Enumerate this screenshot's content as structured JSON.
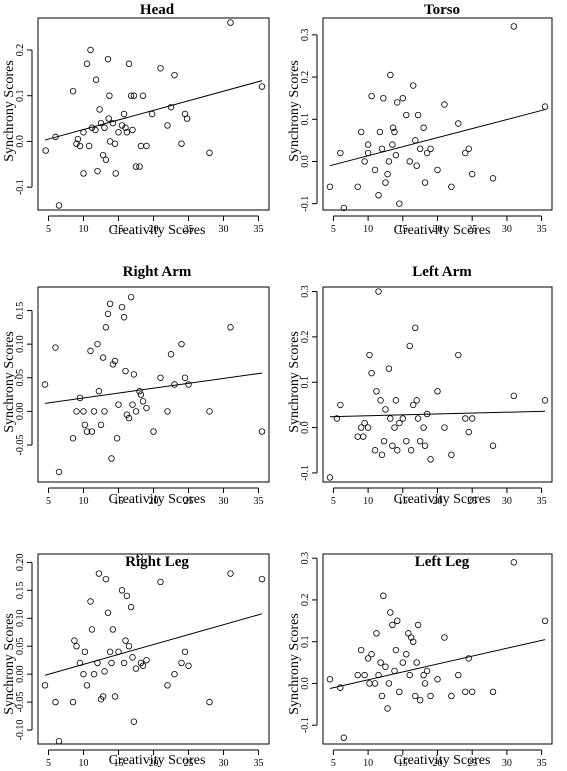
{
  "chart_data": [
    {
      "type": "scatter",
      "title": "Head",
      "xlabel": "Creativity Scores",
      "ylabel": "Synchrony Scores",
      "xlim": [
        3.5,
        36.5
      ],
      "ylim": [
        -0.15,
        0.27
      ],
      "xticks": [
        5,
        10,
        15,
        20,
        25,
        30,
        35
      ],
      "yticks": [
        -0.1,
        0.0,
        0.1,
        0.2
      ],
      "ytick_labels": [
        "-0.1",
        "0.0",
        "0.1",
        "0.2"
      ],
      "trend": [
        [
          4.5,
          0.003
        ],
        [
          35.5,
          0.133
        ]
      ],
      "points": [
        [
          4.6,
          -0.02
        ],
        [
          6,
          0.01
        ],
        [
          6.5,
          -0.14
        ],
        [
          8.5,
          0.11
        ],
        [
          9,
          -0.005
        ],
        [
          9.2,
          0.005
        ],
        [
          9.5,
          -0.01
        ],
        [
          10,
          0.02
        ],
        [
          10,
          -0.07
        ],
        [
          10.5,
          0.17
        ],
        [
          10.8,
          -0.01
        ],
        [
          11,
          0.2
        ],
        [
          11.2,
          0.03
        ],
        [
          11.7,
          0.025
        ],
        [
          11.8,
          0.135
        ],
        [
          12,
          -0.065
        ],
        [
          12.3,
          0.07
        ],
        [
          12.5,
          0.04
        ],
        [
          12.8,
          -0.03
        ],
        [
          13,
          0.03
        ],
        [
          13.2,
          -0.04
        ],
        [
          13.5,
          0.18
        ],
        [
          13.6,
          0.05
        ],
        [
          13.7,
          0.1
        ],
        [
          13.8,
          0.0
        ],
        [
          14.2,
          0.04
        ],
        [
          14.5,
          -0.005
        ],
        [
          14.6,
          -0.07
        ],
        [
          15,
          0.02
        ],
        [
          15.5,
          0.035
        ],
        [
          15.8,
          0.06
        ],
        [
          16,
          0.03
        ],
        [
          16.2,
          0.02
        ],
        [
          16.5,
          0.17
        ],
        [
          16.8,
          0.1
        ],
        [
          17,
          0.025
        ],
        [
          17.2,
          0.1
        ],
        [
          17.5,
          -0.055
        ],
        [
          18,
          -0.055
        ],
        [
          18.2,
          -0.01
        ],
        [
          18.5,
          0.1
        ],
        [
          19,
          -0.01
        ],
        [
          19.8,
          0.06
        ],
        [
          21,
          0.16
        ],
        [
          22,
          0.035
        ],
        [
          22.5,
          0.075
        ],
        [
          23,
          0.145
        ],
        [
          24,
          -0.005
        ],
        [
          24.5,
          0.06
        ],
        [
          24.8,
          0.05
        ],
        [
          28,
          -0.025
        ],
        [
          31,
          0.26
        ],
        [
          35.5,
          0.12
        ]
      ]
    },
    {
      "type": "scatter",
      "title": "Torso",
      "xlabel": "Creativity Scores",
      "ylabel": "Synchrony Scores",
      "xlim": [
        3.5,
        36.5
      ],
      "ylim": [
        -0.115,
        0.34
      ],
      "xticks": [
        5,
        10,
        15,
        20,
        25,
        30,
        35
      ],
      "yticks": [
        -0.1,
        0.0,
        0.1,
        0.2,
        0.3
      ],
      "ytick_labels": [
        "-0.1",
        "0.0",
        "0.1",
        "0.2",
        "0.3"
      ],
      "trend": [
        [
          4.5,
          -0.01
        ],
        [
          35.5,
          0.123
        ]
      ],
      "points": [
        [
          4.5,
          -0.06
        ],
        [
          6,
          0.02
        ],
        [
          6.5,
          -0.11
        ],
        [
          8.5,
          -0.06
        ],
        [
          9,
          0.07
        ],
        [
          9.5,
          0.0
        ],
        [
          10,
          0.04
        ],
        [
          10,
          0.02
        ],
        [
          10.5,
          0.155
        ],
        [
          11,
          -0.02
        ],
        [
          11.5,
          -0.08
        ],
        [
          11.7,
          0.07
        ],
        [
          12,
          0.03
        ],
        [
          12.2,
          0.15
        ],
        [
          12.5,
          -0.05
        ],
        [
          12.8,
          -0.03
        ],
        [
          13,
          0.0
        ],
        [
          13.2,
          0.205
        ],
        [
          13.5,
          0.04
        ],
        [
          13.6,
          0.08
        ],
        [
          13.8,
          0.07
        ],
        [
          14,
          0.015
        ],
        [
          14.2,
          0.14
        ],
        [
          14.5,
          -0.1
        ],
        [
          15,
          0.15
        ],
        [
          15.5,
          0.11
        ],
        [
          16,
          0.0
        ],
        [
          16.5,
          0.18
        ],
        [
          16.8,
          0.05
        ],
        [
          17,
          -0.01
        ],
        [
          17.2,
          0.11
        ],
        [
          17.5,
          0.03
        ],
        [
          18,
          0.08
        ],
        [
          18.2,
          -0.05
        ],
        [
          18.5,
          0.02
        ],
        [
          19,
          0.03
        ],
        [
          20,
          -0.02
        ],
        [
          21,
          0.135
        ],
        [
          22,
          -0.06
        ],
        [
          23,
          0.09
        ],
        [
          24,
          0.02
        ],
        [
          24.5,
          0.03
        ],
        [
          25,
          -0.03
        ],
        [
          28,
          -0.04
        ],
        [
          31,
          0.32
        ],
        [
          35.5,
          0.13
        ]
      ]
    },
    {
      "type": "scatter",
      "title": "Right Arm",
      "xlabel": "Creativity Scores",
      "ylabel": "Synchrony Scores",
      "xlim": [
        3.5,
        36.5
      ],
      "ylim": [
        -0.105,
        0.185
      ],
      "xticks": [
        5,
        10,
        15,
        20,
        25,
        30,
        35
      ],
      "yticks": [
        -0.05,
        0.0,
        0.05,
        0.1,
        0.15
      ],
      "ytick_labels": [
        "-0.05",
        "0.00",
        "0.05",
        "0.10",
        "0.15"
      ],
      "trend": [
        [
          4.5,
          0.012
        ],
        [
          35.5,
          0.057
        ]
      ],
      "points": [
        [
          4.5,
          0.04
        ],
        [
          6,
          0.095
        ],
        [
          6.5,
          -0.09
        ],
        [
          8.5,
          -0.04
        ],
        [
          9,
          0.0
        ],
        [
          9.5,
          0.02
        ],
        [
          10,
          0.0
        ],
        [
          10.2,
          -0.02
        ],
        [
          10.5,
          -0.03
        ],
        [
          11,
          0.09
        ],
        [
          11.2,
          -0.03
        ],
        [
          11.5,
          0.0
        ],
        [
          12,
          0.1
        ],
        [
          12.2,
          0.03
        ],
        [
          12.5,
          -0.02
        ],
        [
          12.8,
          0.08
        ],
        [
          13,
          0.0
        ],
        [
          13.2,
          0.125
        ],
        [
          13.5,
          0.145
        ],
        [
          13.8,
          0.16
        ],
        [
          14,
          -0.07
        ],
        [
          14.2,
          0.07
        ],
        [
          14.5,
          0.075
        ],
        [
          14.8,
          -0.04
        ],
        [
          15,
          0.01
        ],
        [
          15.5,
          0.155
        ],
        [
          15.8,
          0.14
        ],
        [
          16,
          0.06
        ],
        [
          16.2,
          -0.005
        ],
        [
          16.5,
          -0.01
        ],
        [
          16.8,
          0.17
        ],
        [
          17,
          0.01
        ],
        [
          17.2,
          0.055
        ],
        [
          17.5,
          0.0
        ],
        [
          18,
          0.03
        ],
        [
          18.2,
          0.025
        ],
        [
          18.5,
          0.015
        ],
        [
          19,
          0.005
        ],
        [
          20,
          -0.03
        ],
        [
          21,
          0.05
        ],
        [
          22,
          0.0
        ],
        [
          22.5,
          0.085
        ],
        [
          23,
          0.04
        ],
        [
          24,
          0.1
        ],
        [
          24.5,
          0.05
        ],
        [
          25,
          0.04
        ],
        [
          28,
          0.0
        ],
        [
          31,
          0.125
        ],
        [
          35.5,
          -0.03
        ]
      ]
    },
    {
      "type": "scatter",
      "title": "Left Arm",
      "xlabel": "Creativity Scores",
      "ylabel": "Synchrony Scores",
      "xlim": [
        3.5,
        36.5
      ],
      "ylim": [
        -0.12,
        0.31
      ],
      "xticks": [
        5,
        10,
        15,
        20,
        25,
        30,
        35
      ],
      "yticks": [
        -0.1,
        0.0,
        0.1,
        0.2,
        0.3
      ],
      "ytick_labels": [
        "-0.1",
        "0.0",
        "0.1",
        "0.2",
        "0.3"
      ],
      "trend": [
        [
          4.5,
          0.024
        ],
        [
          35.5,
          0.036
        ]
      ],
      "points": [
        [
          4.5,
          -0.11
        ],
        [
          5.5,
          0.02
        ],
        [
          6,
          0.05
        ],
        [
          8.5,
          -0.02
        ],
        [
          9,
          0.0
        ],
        [
          9.3,
          -0.02
        ],
        [
          9.5,
          0.01
        ],
        [
          10,
          0.0
        ],
        [
          10.2,
          0.16
        ],
        [
          10.5,
          0.12
        ],
        [
          11,
          -0.05
        ],
        [
          11.2,
          0.08
        ],
        [
          11.5,
          0.3
        ],
        [
          11.8,
          0.06
        ],
        [
          12,
          -0.06
        ],
        [
          12.3,
          -0.03
        ],
        [
          12.5,
          0.04
        ],
        [
          13,
          0.13
        ],
        [
          13.2,
          0.02
        ],
        [
          13.5,
          -0.04
        ],
        [
          13.8,
          0.0
        ],
        [
          14,
          0.06
        ],
        [
          14.2,
          -0.05
        ],
        [
          14.5,
          0.01
        ],
        [
          15,
          0.02
        ],
        [
          15.5,
          -0.03
        ],
        [
          16,
          0.18
        ],
        [
          16.2,
          -0.05
        ],
        [
          16.5,
          0.05
        ],
        [
          16.8,
          0.22
        ],
        [
          17,
          0.06
        ],
        [
          17.2,
          0.02
        ],
        [
          17.5,
          -0.03
        ],
        [
          18,
          0.0
        ],
        [
          18.2,
          -0.04
        ],
        [
          18.5,
          0.03
        ],
        [
          19,
          -0.07
        ],
        [
          20,
          0.08
        ],
        [
          21,
          0.0
        ],
        [
          22,
          -0.06
        ],
        [
          23,
          0.16
        ],
        [
          24,
          0.02
        ],
        [
          24.5,
          -0.01
        ],
        [
          25,
          0.02
        ],
        [
          28,
          -0.04
        ],
        [
          31,
          0.07
        ],
        [
          35.5,
          0.06
        ]
      ]
    },
    {
      "type": "scatter",
      "title": "Right Leg",
      "xlabel": "Creativity Scores",
      "ylabel": "Synchrony Scores",
      "xlim": [
        3.5,
        36.5
      ],
      "ylim": [
        -0.125,
        0.215
      ],
      "xticks": [
        5,
        10,
        15,
        20,
        25,
        30,
        35
      ],
      "yticks": [
        -0.1,
        -0.05,
        0.0,
        0.05,
        0.1,
        0.15,
        0.2
      ],
      "ytick_labels": [
        "-0.10",
        "-0.05",
        "0.00",
        "0.05",
        "0.10",
        "0.15",
        "0.20"
      ],
      "trend": [
        [
          4.5,
          -0.002
        ],
        [
          35.5,
          0.108
        ]
      ],
      "points": [
        [
          4.5,
          -0.02
        ],
        [
          6,
          -0.05
        ],
        [
          6.5,
          -0.12
        ],
        [
          8.5,
          -0.05
        ],
        [
          8.7,
          0.06
        ],
        [
          9,
          0.05
        ],
        [
          9.5,
          0.02
        ],
        [
          10,
          0.0
        ],
        [
          10.2,
          0.04
        ],
        [
          10.5,
          -0.02
        ],
        [
          11,
          0.13
        ],
        [
          11.2,
          0.08
        ],
        [
          11.5,
          0.0
        ],
        [
          12,
          0.02
        ],
        [
          12.2,
          0.18
        ],
        [
          12.5,
          -0.045
        ],
        [
          12.8,
          -0.04
        ],
        [
          13,
          0.005
        ],
        [
          13.2,
          0.17
        ],
        [
          13.5,
          0.11
        ],
        [
          13.8,
          0.04
        ],
        [
          14,
          0.02
        ],
        [
          14.2,
          0.08
        ],
        [
          14.5,
          -0.04
        ],
        [
          15,
          0.04
        ],
        [
          15.5,
          0.15
        ],
        [
          15.8,
          0.02
        ],
        [
          16,
          0.06
        ],
        [
          16.2,
          0.14
        ],
        [
          16.5,
          0.05
        ],
        [
          16.8,
          0.12
        ],
        [
          17,
          0.03
        ],
        [
          17.2,
          -0.085
        ],
        [
          17.5,
          0.01
        ],
        [
          18,
          0.21
        ],
        [
          18.2,
          0.02
        ],
        [
          18.5,
          0.015
        ],
        [
          19,
          0.025
        ],
        [
          21,
          0.165
        ],
        [
          22,
          -0.02
        ],
        [
          23,
          0.0
        ],
        [
          24,
          0.02
        ],
        [
          24.5,
          0.04
        ],
        [
          25,
          0.015
        ],
        [
          28,
          -0.05
        ],
        [
          31,
          0.18
        ],
        [
          35.5,
          0.17
        ]
      ]
    },
    {
      "type": "scatter",
      "title": "Left Leg",
      "xlabel": "Creativity Scores",
      "ylabel": "Synchrony Scores",
      "xlim": [
        3.5,
        36.5
      ],
      "ylim": [
        -0.145,
        0.31
      ],
      "xticks": [
        5,
        10,
        15,
        20,
        25,
        30,
        35
      ],
      "yticks": [
        -0.1,
        0.0,
        0.1,
        0.2,
        0.3
      ],
      "ytick_labels": [
        "-0.1",
        "0.0",
        "0.1",
        "0.2",
        "0.3"
      ],
      "trend": [
        [
          4.5,
          -0.012
        ],
        [
          35.5,
          0.105
        ]
      ],
      "points": [
        [
          4.5,
          0.01
        ],
        [
          6,
          -0.01
        ],
        [
          6.5,
          -0.13
        ],
        [
          8.5,
          0.02
        ],
        [
          9,
          0.08
        ],
        [
          9.5,
          0.02
        ],
        [
          10,
          0.06
        ],
        [
          10.2,
          0.0
        ],
        [
          10.5,
          0.07
        ],
        [
          11,
          0.0
        ],
        [
          11.2,
          0.12
        ],
        [
          11.5,
          0.02
        ],
        [
          11.8,
          0.05
        ],
        [
          12,
          -0.03
        ],
        [
          12.2,
          0.21
        ],
        [
          12.5,
          0.04
        ],
        [
          12.8,
          -0.06
        ],
        [
          13,
          0.0
        ],
        [
          13.2,
          0.17
        ],
        [
          13.5,
          0.14
        ],
        [
          13.8,
          0.03
        ],
        [
          14,
          0.08
        ],
        [
          14.2,
          0.15
        ],
        [
          14.5,
          -0.02
        ],
        [
          15,
          0.05
        ],
        [
          15.5,
          0.07
        ],
        [
          15.8,
          0.12
        ],
        [
          16,
          0.02
        ],
        [
          16.2,
          0.11
        ],
        [
          16.5,
          0.1
        ],
        [
          16.8,
          -0.03
        ],
        [
          17,
          0.05
        ],
        [
          17.2,
          0.14
        ],
        [
          17.5,
          -0.04
        ],
        [
          18,
          0.02
        ],
        [
          18.2,
          0.0
        ],
        [
          18.5,
          0.03
        ],
        [
          19,
          -0.03
        ],
        [
          20,
          0.01
        ],
        [
          21,
          0.11
        ],
        [
          22,
          -0.03
        ],
        [
          23,
          0.02
        ],
        [
          24,
          -0.02
        ],
        [
          24.5,
          0.06
        ],
        [
          25,
          -0.02
        ],
        [
          28,
          -0.02
        ],
        [
          31,
          0.29
        ],
        [
          35.5,
          0.15
        ]
      ]
    }
  ]
}
